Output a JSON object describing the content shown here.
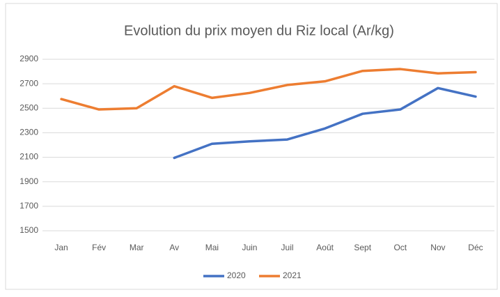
{
  "chart_data": {
    "type": "line",
    "title": "Evolution du prix moyen du Riz local (Ar/kg)",
    "categories": [
      "Jan",
      "Fév",
      "Mar",
      "Av",
      "Mai",
      "Juin",
      "Juil",
      "Août",
      "Sept",
      "Oct",
      "Nov",
      "Déc"
    ],
    "series": [
      {
        "name": "2020",
        "color": "#4472c4",
        "values": [
          null,
          null,
          null,
          2095,
          2210,
          2230,
          2245,
          2335,
          2455,
          2490,
          2665,
          2595
        ]
      },
      {
        "name": "2021",
        "color": "#ed7d31",
        "values": [
          2575,
          2490,
          2500,
          2680,
          2585,
          2625,
          2690,
          2720,
          2805,
          2820,
          2785,
          2795
        ]
      }
    ],
    "ylim": [
      1500,
      2900
    ],
    "yticks": [
      1500,
      1700,
      1900,
      2100,
      2300,
      2500,
      2700,
      2900
    ],
    "grid": true,
    "legend": "bottom"
  }
}
